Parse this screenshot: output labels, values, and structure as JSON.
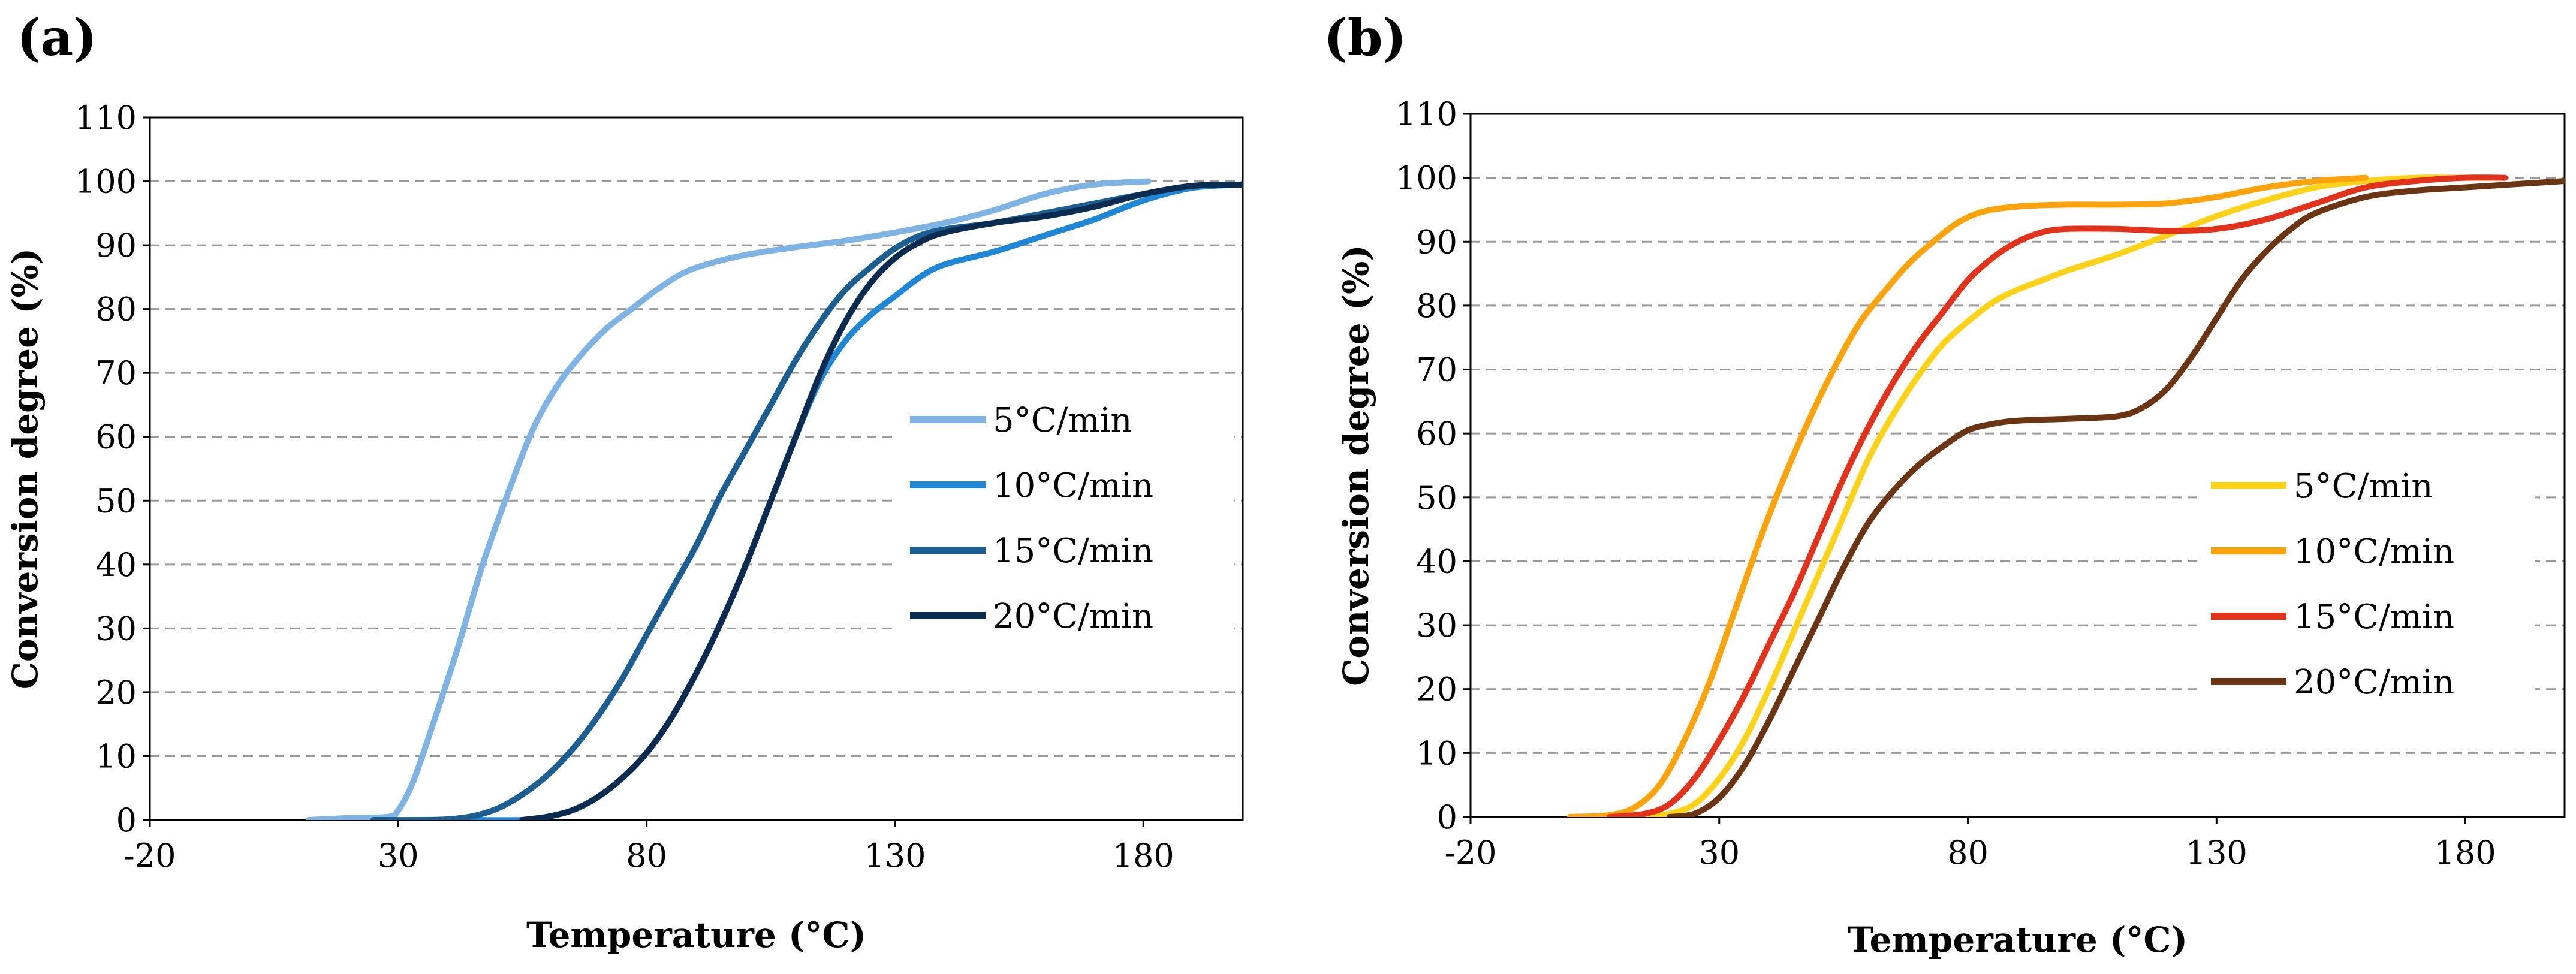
{
  "chart_data": [
    {
      "type": "line",
      "panel_label": "(a)",
      "xlabel": "Temperature (°C)",
      "ylabel": "Conversion degree (%)",
      "xlim": [
        -20,
        200
      ],
      "ylim": [
        0,
        110
      ],
      "xticks": [
        -20,
        30,
        80,
        130,
        180
      ],
      "xtick_labels": [
        "-20",
        "30",
        "80",
        "130",
        "180"
      ],
      "yticks": [
        0,
        10,
        20,
        30,
        40,
        50,
        60,
        70,
        80,
        90,
        100,
        110
      ],
      "ytick_labels": [
        "0",
        "10",
        "20",
        "30",
        "40",
        "50",
        "60",
        "70",
        "80",
        "90",
        "100",
        "110"
      ],
      "grid": "horizontal dashed",
      "legend_position": "center-right",
      "series": [
        {
          "name": "5°C/min",
          "color": "#7fb3e3",
          "x": [
            12,
            20,
            28,
            30,
            33,
            37,
            42,
            47,
            52,
            57,
            62,
            67,
            72,
            77,
            82,
            87,
            92,
            100,
            110,
            120,
            130,
            140,
            150,
            160,
            170,
            181
          ],
          "y": [
            0,
            0.3,
            0.5,
            1.5,
            6,
            15,
            27,
            40,
            51,
            61,
            68,
            73,
            77,
            80,
            83,
            85.5,
            87,
            88.5,
            89.7,
            90.7,
            92,
            93.5,
            95.5,
            98,
            99.5,
            100
          ]
        },
        {
          "name": "10°C/min",
          "color": "#1f87d6",
          "x": [
            45,
            55,
            60,
            65,
            70,
            75,
            80,
            85,
            90,
            95,
            100,
            105,
            110,
            115,
            120,
            125,
            130,
            135,
            140,
            150,
            160,
            170,
            180,
            190,
            200
          ],
          "y": [
            0,
            0,
            0.5,
            1.5,
            3.5,
            6.5,
            10.5,
            16,
            23,
            31,
            40,
            50,
            60,
            69,
            75,
            79,
            82,
            85,
            87,
            89,
            91.5,
            94,
            97,
            99,
            99.5
          ]
        },
        {
          "name": "15°C/min",
          "color": "#1c5e92",
          "x": [
            25,
            35,
            40,
            45,
            50,
            55,
            60,
            65,
            70,
            75,
            80,
            85,
            90,
            95,
            100,
            105,
            110,
            115,
            120,
            125,
            130,
            135,
            140,
            150,
            160,
            170,
            180,
            190,
            200
          ],
          "y": [
            0,
            0,
            0.1,
            0.6,
            1.8,
            4,
            7,
            11,
            16,
            22,
            29,
            36,
            43,
            51,
            58,
            65,
            72,
            78,
            83,
            86.5,
            89.5,
            91.5,
            92.5,
            93.5,
            95,
            96.5,
            98,
            99.3,
            99.5
          ]
        },
        {
          "name": "20°C/min",
          "color": "#0b2c50",
          "x": [
            55,
            60,
            65,
            70,
            75,
            80,
            85,
            90,
            95,
            100,
            105,
            110,
            115,
            120,
            125,
            130,
            135,
            140,
            150,
            160,
            170,
            180,
            190,
            200
          ],
          "y": [
            0,
            0.5,
            1.5,
            3.5,
            6.5,
            10.5,
            16,
            23,
            31,
            40,
            50,
            60,
            70,
            78,
            84,
            88,
            90.5,
            92,
            93.5,
            94.5,
            96,
            98,
            99.3,
            99.5
          ]
        }
      ]
    },
    {
      "type": "line",
      "panel_label": "(b)",
      "xlabel": "Temperature (°C)",
      "ylabel": "Conversion degree (%)",
      "xlim": [
        -20,
        200
      ],
      "ylim": [
        0,
        110
      ],
      "xticks": [
        -20,
        30,
        80,
        130,
        180
      ],
      "xtick_labels": [
        "-20",
        "30",
        "80",
        "130",
        "180"
      ],
      "yticks": [
        0,
        10,
        20,
        30,
        40,
        50,
        60,
        70,
        80,
        90,
        100,
        110
      ],
      "ytick_labels": [
        "0",
        "10",
        "20",
        "30",
        "40",
        "50",
        "60",
        "70",
        "80",
        "90",
        "100",
        "110"
      ],
      "grid": "horizontal dashed",
      "legend_position": "center-right",
      "series": [
        {
          "name": "5°C/min",
          "color": "#ffd21a",
          "x": [
            15,
            20,
            25,
            30,
            35,
            40,
            45,
            50,
            55,
            60,
            65,
            70,
            75,
            80,
            85,
            90,
            95,
            100,
            110,
            120,
            130,
            140,
            150,
            160,
            170,
            180,
            185
          ],
          "y": [
            0,
            0.5,
            2,
            6,
            12,
            20,
            29,
            38,
            47,
            56,
            63,
            69,
            74,
            77.5,
            80.5,
            82.5,
            84,
            85.5,
            88,
            91,
            94,
            96.5,
            98.5,
            99.5,
            100,
            100,
            100
          ]
        },
        {
          "name": "10°C/min",
          "color": "#ffa30c",
          "x": [
            0,
            8,
            13,
            18,
            23,
            28,
            33,
            38,
            43,
            48,
            53,
            58,
            63,
            68,
            73,
            78,
            83,
            90,
            100,
            110,
            120,
            130,
            140,
            150,
            160
          ],
          "y": [
            0,
            0.3,
            1.5,
            5,
            12,
            21,
            32,
            43,
            53,
            62,
            70,
            77,
            82,
            86.5,
            90,
            93,
            94.7,
            95.5,
            95.8,
            95.8,
            96,
            97,
            98.5,
            99.5,
            100
          ]
        },
        {
          "name": "15°C/min",
          "color": "#e3321b",
          "x": [
            8,
            15,
            20,
            25,
            30,
            35,
            40,
            45,
            50,
            55,
            60,
            65,
            70,
            75,
            80,
            85,
            90,
            95,
            100,
            110,
            120,
            130,
            140,
            150,
            160,
            170,
            180,
            188
          ],
          "y": [
            0,
            0.5,
            2,
            6,
            12,
            19,
            27,
            35,
            44,
            53,
            61,
            68,
            74,
            79,
            84,
            87.5,
            90,
            91.5,
            92,
            92,
            91.7,
            92,
            93.5,
            96,
            98.5,
            99.5,
            100,
            100
          ]
        },
        {
          "name": "20°C/min",
          "color": "#6b3413",
          "x": [
            20,
            25,
            30,
            35,
            40,
            45,
            50,
            55,
            60,
            65,
            70,
            75,
            80,
            85,
            90,
            100,
            110,
            115,
            120,
            125,
            130,
            135,
            140,
            145,
            150,
            160,
            170,
            180,
            190,
            200
          ],
          "y": [
            0,
            0.5,
            3,
            8,
            15,
            23,
            31,
            39,
            46,
            51,
            55,
            58,
            60.5,
            61.5,
            62,
            62.3,
            62.7,
            64,
            67,
            72,
            78,
            84,
            88.5,
            92,
            94.5,
            97,
            98,
            98.5,
            99,
            99.5
          ]
        }
      ]
    }
  ]
}
